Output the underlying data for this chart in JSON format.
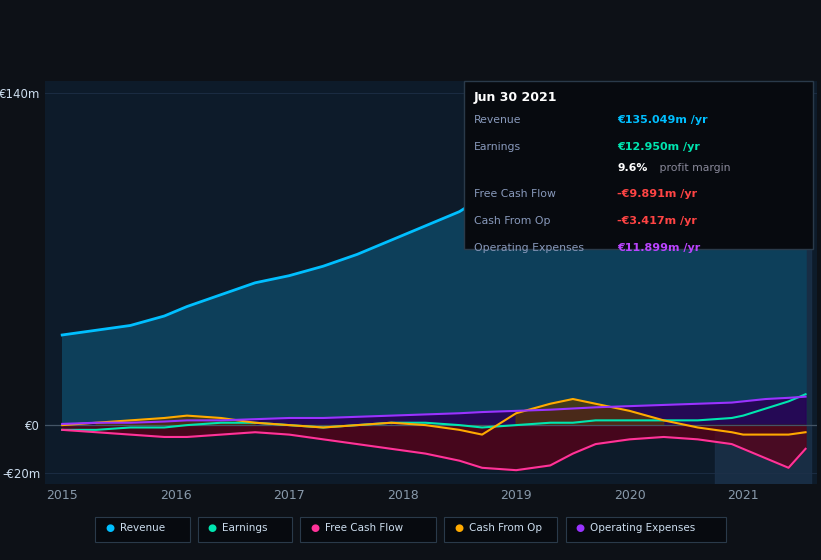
{
  "bg_color": "#0d1117",
  "chart_bg": "#0d1b2a",
  "grid_color": "#1e3048",
  "xlabel_color": "#8899aa",
  "ylabel_color": "#ccddee",
  "title_label": "€140m",
  "zero_label": "€0",
  "neg_label": "-€20m",
  "x_years": [
    2015.0,
    2015.3,
    2015.6,
    2015.9,
    2016.1,
    2016.4,
    2016.7,
    2017.0,
    2017.3,
    2017.6,
    2017.9,
    2018.2,
    2018.5,
    2018.7,
    2019.0,
    2019.3,
    2019.5,
    2019.7,
    2020.0,
    2020.3,
    2020.6,
    2020.9,
    2021.0,
    2021.2,
    2021.4,
    2021.55
  ],
  "revenue": [
    38,
    40,
    42,
    46,
    50,
    55,
    60,
    63,
    67,
    72,
    78,
    84,
    90,
    96,
    100,
    105,
    103,
    100,
    97,
    93,
    92,
    96,
    100,
    110,
    125,
    135
  ],
  "earnings": [
    -2,
    -2,
    -1,
    -1,
    0,
    1,
    1,
    0,
    -1,
    0,
    1,
    1,
    0,
    -1,
    0,
    1,
    1,
    2,
    2,
    2,
    2,
    3,
    4,
    7,
    10,
    13
  ],
  "free_cash_flow": [
    -2,
    -3,
    -4,
    -5,
    -5,
    -4,
    -3,
    -4,
    -6,
    -8,
    -10,
    -12,
    -15,
    -18,
    -19,
    -17,
    -12,
    -8,
    -6,
    -5,
    -6,
    -8,
    -10,
    -14,
    -18,
    -10
  ],
  "cash_from_op": [
    0,
    1,
    2,
    3,
    4,
    3,
    1,
    0,
    -1,
    0,
    1,
    0,
    -2,
    -4,
    5,
    9,
    11,
    9,
    6,
    2,
    -1,
    -3,
    -4,
    -4,
    -4,
    -3
  ],
  "operating_expenses": [
    0.5,
    1,
    1,
    1.5,
    2,
    2,
    2.5,
    3,
    3,
    3.5,
    4,
    4.5,
    5,
    5.5,
    6,
    6.5,
    7,
    7.5,
    8,
    8.5,
    9,
    9.5,
    10,
    11,
    11.5,
    12
  ],
  "revenue_color": "#00bfff",
  "revenue_fill": "#0d3f5a",
  "earnings_color": "#00e5b0",
  "free_cash_flow_color": "#ff3399",
  "cash_from_op_color": "#ffaa00",
  "operating_expenses_color": "#9933ff",
  "highlight_start": 2020.75,
  "highlight_end": 2021.6,
  "highlight_color": "#1a3048",
  "info_box": {
    "date": "Jun 30 2021",
    "rows": [
      {
        "label": "Revenue",
        "val": "€135.049m /yr",
        "val_color": "#00bfff",
        "extra": null
      },
      {
        "label": "Earnings",
        "val": "€12.950m /yr",
        "val_color": "#00e5b0",
        "extra": "9.6% profit margin"
      },
      {
        "label": "Free Cash Flow",
        "val": "-€9.891m /yr",
        "val_color": "#ff4444",
        "extra": null
      },
      {
        "label": "Cash From Op",
        "val": "-€3.417m /yr",
        "val_color": "#ff4444",
        "extra": null
      },
      {
        "label": "Operating Expenses",
        "val": "€11.899m /yr",
        "val_color": "#bb44ff",
        "extra": null
      }
    ],
    "label_color": "#8899bb",
    "date_color": "#ffffff",
    "bg_color": "#070a0f",
    "border_color": "#2a3a4a"
  },
  "legend_items": [
    "Revenue",
    "Earnings",
    "Free Cash Flow",
    "Cash From Op",
    "Operating Expenses"
  ],
  "legend_colors": [
    "#00bfff",
    "#00e5b0",
    "#ff3399",
    "#ffaa00",
    "#9933ff"
  ],
  "legend_bg": "#070a0f",
  "legend_border": "#2a3a4a",
  "ylim": [
    -25,
    145
  ],
  "xlim": [
    2014.85,
    2021.65
  ]
}
